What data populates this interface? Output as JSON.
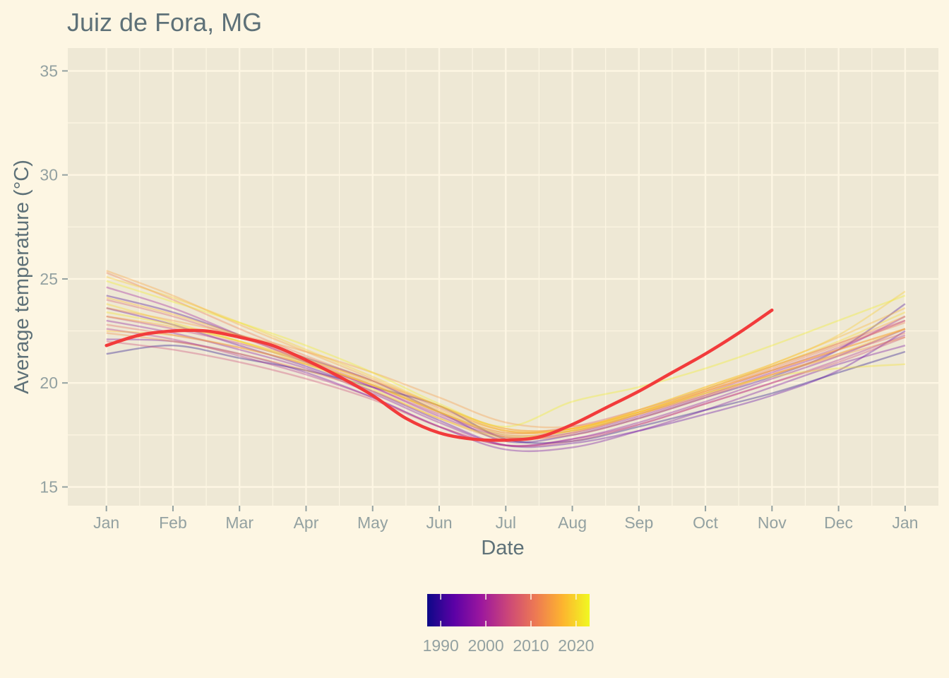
{
  "chart_data": {
    "type": "line",
    "title": "Juiz de Fora, MG",
    "xlabel": "Date",
    "ylabel": "Average temperature (°C)",
    "x_ticks": [
      "Jan",
      "Feb",
      "Mar",
      "Apr",
      "May",
      "Jun",
      "Jul",
      "Aug",
      "Sep",
      "Oct",
      "Nov",
      "Dec",
      "Jan"
    ],
    "y_ticks": [
      15,
      20,
      25,
      30,
      35
    ],
    "ylim": [
      14.1,
      36.1
    ],
    "x_unit": "month (0 = Jan 1, 12 = next Jan 1)",
    "xlim": [
      -0.58,
      12.5
    ],
    "grid": true,
    "colorbar": {
      "label_years": [
        1990,
        2000,
        2010,
        2020
      ],
      "range": [
        1987,
        2023
      ],
      "colors": [
        "#0d0887",
        "#5c01a6",
        "#9c179e",
        "#cc4778",
        "#ed7953",
        "#fdb42f",
        "#f0f921"
      ]
    },
    "historical_series": [
      {
        "year": 1988,
        "x": [
          0,
          1,
          2,
          3,
          4,
          5,
          6,
          7,
          8,
          9,
          10,
          11,
          12
        ],
        "y": [
          21.4,
          21.8,
          21.2,
          20.6,
          19.8,
          18.9,
          17.3,
          17.2,
          17.9,
          18.7,
          19.5,
          20.5,
          21.5
        ]
      },
      {
        "year": 1991,
        "x": [
          0,
          1,
          2,
          3,
          4,
          5,
          6,
          7,
          8,
          9,
          10,
          11,
          12
        ],
        "y": [
          24.2,
          23.4,
          22.3,
          21.2,
          20.1,
          18.6,
          17.2,
          17.5,
          18.3,
          19.3,
          20.3,
          21.6,
          23.8
        ]
      },
      {
        "year": 1993,
        "x": [
          0,
          1,
          2,
          3,
          4,
          5,
          6,
          7,
          8,
          9,
          10,
          11,
          12
        ],
        "y": [
          23.6,
          22.8,
          21.8,
          20.8,
          19.6,
          18.2,
          17.0,
          17.1,
          17.7,
          18.5,
          19.4,
          20.6,
          22.5
        ]
      },
      {
        "year": 1995,
        "x": [
          0,
          1,
          2,
          3,
          4,
          5,
          6,
          7,
          8,
          9,
          10,
          11,
          12
        ],
        "y": [
          22.1,
          22.0,
          21.4,
          20.5,
          19.3,
          17.9,
          16.8,
          16.9,
          17.7,
          18.7,
          19.8,
          20.9,
          21.8
        ]
      },
      {
        "year": 1997,
        "x": [
          0,
          1,
          2,
          3,
          4,
          5,
          6,
          7,
          8,
          9,
          10,
          11,
          12
        ],
        "y": [
          23.0,
          22.4,
          21.6,
          20.7,
          19.5,
          18.1,
          17.0,
          17.3,
          18.1,
          19.1,
          20.2,
          21.3,
          22.6
        ]
      },
      {
        "year": 1999,
        "x": [
          0,
          1,
          2,
          3,
          4,
          5,
          6,
          7,
          8,
          9,
          10,
          11,
          12
        ],
        "y": [
          24.6,
          23.6,
          22.3,
          21.0,
          19.8,
          18.4,
          17.4,
          17.6,
          18.4,
          19.4,
          20.5,
          21.6,
          23.2
        ]
      },
      {
        "year": 2001,
        "x": [
          0,
          1,
          2,
          3,
          4,
          5,
          6,
          7,
          8,
          9,
          10,
          11,
          12
        ],
        "y": [
          22.6,
          22.1,
          21.3,
          20.4,
          19.3,
          17.9,
          17.0,
          17.3,
          18.0,
          19.0,
          20.0,
          21.1,
          22.3
        ]
      },
      {
        "year": 2003,
        "x": [
          0,
          1,
          2,
          3,
          4,
          5,
          6,
          7,
          8,
          9,
          10,
          11,
          12
        ],
        "y": [
          23.2,
          22.6,
          21.9,
          21.0,
          19.8,
          18.5,
          17.5,
          17.7,
          18.5,
          19.5,
          20.6,
          21.7,
          23.0
        ]
      },
      {
        "year": 2005,
        "x": [
          0,
          1,
          2,
          3,
          4,
          5,
          6,
          7,
          8,
          9,
          10,
          11,
          12
        ],
        "y": [
          22.0,
          21.6,
          21.0,
          20.2,
          19.2,
          17.9,
          17.0,
          17.2,
          18.0,
          19.0,
          20.0,
          21.0,
          22.2
        ]
      },
      {
        "year": 2007,
        "x": [
          0,
          1,
          2,
          3,
          4,
          5,
          6,
          7,
          8,
          9,
          10,
          11,
          12
        ],
        "y": [
          24.0,
          23.2,
          22.2,
          21.1,
          19.9,
          18.6,
          17.6,
          17.9,
          18.7,
          19.7,
          20.8,
          21.9,
          23.0
        ]
      },
      {
        "year": 2009,
        "x": [
          0,
          1,
          2,
          3,
          4,
          5,
          6,
          7,
          8,
          9,
          10,
          11,
          12
        ],
        "y": [
          22.8,
          22.3,
          21.7,
          20.9,
          19.9,
          18.6,
          17.4,
          17.5,
          18.3,
          19.3,
          20.4,
          21.4,
          22.4
        ]
      },
      {
        "year": 2011,
        "x": [
          0,
          1,
          2,
          3,
          4,
          5,
          6,
          7,
          8,
          9,
          10,
          11,
          12
        ],
        "y": [
          25.3,
          24.0,
          22.6,
          21.3,
          20.1,
          18.8,
          17.7,
          17.7,
          18.5,
          19.6,
          20.7,
          21.8,
          22.9
        ]
      },
      {
        "year": 2013,
        "x": [
          0,
          1,
          2,
          3,
          4,
          5,
          6,
          7,
          8,
          9,
          10,
          11,
          12
        ],
        "y": [
          22.4,
          22.0,
          21.4,
          20.6,
          19.6,
          18.3,
          17.3,
          17.6,
          18.5,
          19.4,
          20.4,
          21.3,
          22.2
        ]
      },
      {
        "year": 2014,
        "x": [
          0,
          1,
          2,
          3,
          4,
          5,
          6,
          7,
          8,
          9,
          10,
          11,
          12
        ],
        "y": [
          23.6,
          23.0,
          22.3,
          21.5,
          20.5,
          19.3,
          18.1,
          17.9,
          18.6,
          19.6,
          20.6,
          21.6,
          22.6
        ]
      },
      {
        "year": 2015,
        "x": [
          0,
          1,
          2,
          3,
          4,
          5,
          6,
          7,
          8,
          9,
          10,
          11,
          12
        ],
        "y": [
          25.4,
          24.2,
          22.8,
          21.5,
          20.2,
          18.9,
          17.8,
          17.8,
          18.6,
          19.7,
          20.8,
          21.9,
          23.2
        ]
      },
      {
        "year": 2016,
        "x": [
          0,
          1,
          2,
          3,
          4,
          5,
          6,
          7,
          8,
          9,
          10,
          11,
          12
        ],
        "y": [
          23.2,
          22.7,
          22.0,
          21.1,
          20.1,
          18.9,
          17.8,
          17.8,
          18.6,
          19.6,
          20.6,
          21.6,
          22.6
        ]
      },
      {
        "year": 2017,
        "x": [
          0,
          1,
          2,
          3,
          4,
          5,
          6,
          7,
          8,
          9,
          10,
          11,
          12
        ],
        "y": [
          24.1,
          23.3,
          22.3,
          21.2,
          20.0,
          18.7,
          17.7,
          17.8,
          18.7,
          19.8,
          20.9,
          22.2,
          23.6
        ]
      },
      {
        "year": 2018,
        "x": [
          0,
          1,
          2,
          3,
          4,
          5,
          6,
          7,
          8,
          9,
          10,
          11,
          12
        ],
        "y": [
          22.5,
          22.3,
          21.7,
          20.9,
          19.9,
          18.6,
          17.6,
          17.8,
          18.6,
          19.5,
          20.4,
          21.4,
          22.6
        ]
      },
      {
        "year": 2019,
        "x": [
          0,
          1,
          2,
          3,
          4,
          5,
          6,
          7,
          8,
          9,
          10,
          11,
          12
        ],
        "y": [
          25.1,
          24.1,
          22.9,
          21.6,
          20.3,
          18.9,
          17.7,
          17.8,
          18.7,
          19.8,
          20.9,
          22.3,
          24.4
        ]
      },
      {
        "year": 2020,
        "x": [
          0,
          1,
          2,
          3,
          4,
          5,
          6,
          7,
          8,
          9,
          10,
          11,
          12
        ],
        "y": [
          23.8,
          22.9,
          22.0,
          20.9,
          19.7,
          18.3,
          17.4,
          17.7,
          18.6,
          19.7,
          20.8,
          22.0,
          23.4
        ]
      },
      {
        "year": 2021,
        "x": [
          0,
          1,
          2,
          3,
          4,
          5,
          6,
          7,
          8,
          9,
          10,
          11,
          12
        ],
        "y": [
          23.4,
          22.8,
          22.0,
          21.0,
          19.9,
          18.6,
          17.5,
          17.7,
          18.5,
          19.5,
          20.3,
          20.7,
          20.9
        ]
      },
      {
        "year": 2022,
        "x": [
          0,
          1,
          2,
          3,
          4,
          5,
          6,
          7,
          8,
          9,
          10,
          11,
          12
        ],
        "y": [
          24.9,
          23.9,
          22.9,
          21.8,
          20.5,
          19.0,
          17.9,
          19.1,
          19.8,
          20.7,
          21.8,
          23.0,
          24.2
        ]
      }
    ],
    "current_series": {
      "color": "#f23b3b",
      "x": [
        0,
        0.5,
        1,
        1.5,
        2,
        2.5,
        3,
        3.5,
        4,
        4.5,
        5,
        5.5,
        6,
        6.5,
        7,
        7.5,
        8,
        8.5,
        9,
        9.5,
        10
      ],
      "y": [
        21.8,
        22.3,
        22.5,
        22.5,
        22.2,
        21.8,
        21.1,
        20.3,
        19.4,
        18.3,
        17.6,
        17.3,
        17.25,
        17.4,
        18.0,
        18.8,
        19.6,
        20.5,
        21.4,
        22.4,
        23.5
      ]
    }
  }
}
